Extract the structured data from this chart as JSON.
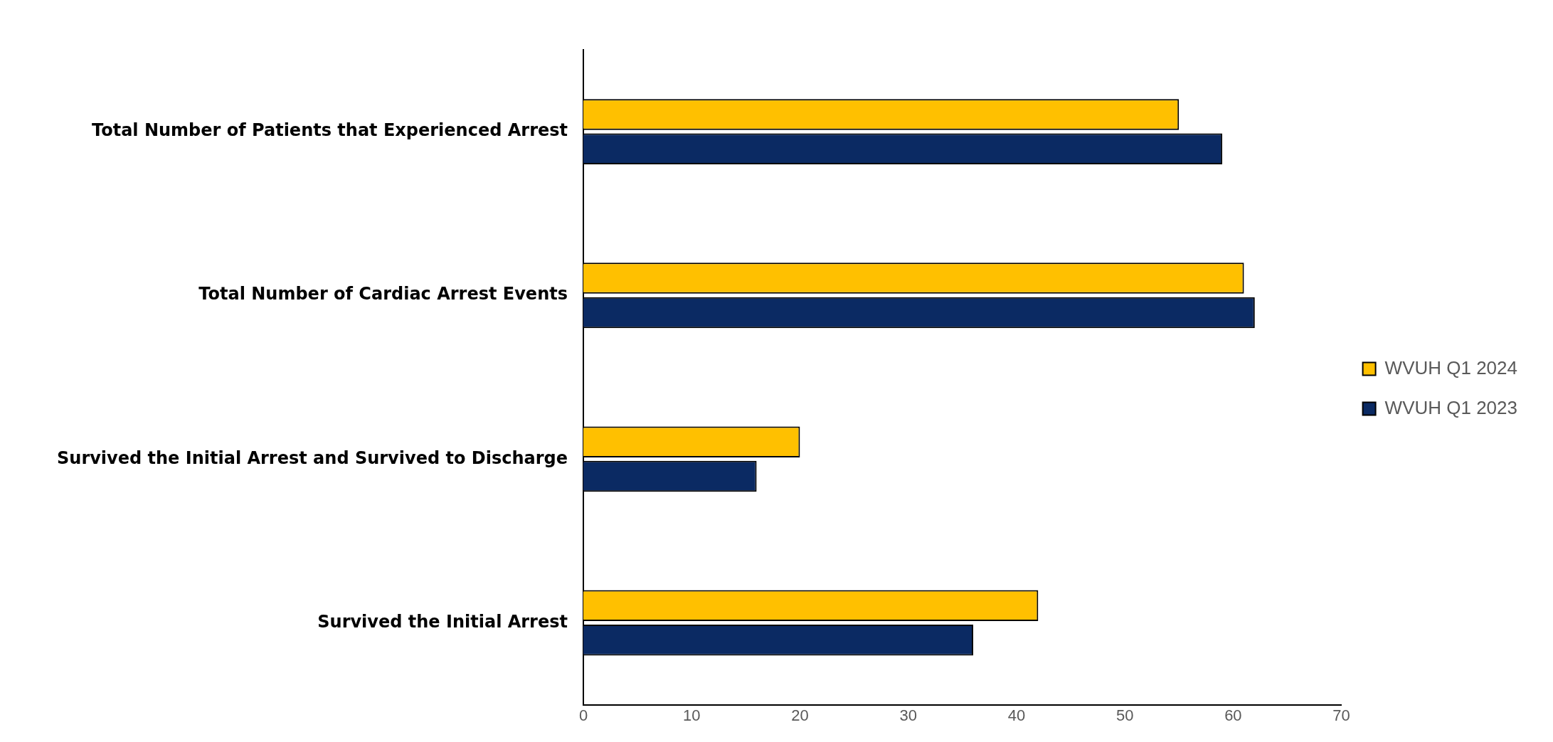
{
  "chart_data": {
    "type": "bar",
    "orientation": "horizontal",
    "categories": [
      "Total Number of Patients that Experienced Arrest",
      "Total Number of Cardiac Arrest Events",
      "Survived the Initial Arrest and Survived to Discharge",
      "Survived the Initial Arrest"
    ],
    "series": [
      {
        "name": "WVUH Q1 2024",
        "color": "#ffc000",
        "values": [
          55,
          61,
          20,
          42
        ]
      },
      {
        "name": "WVUH Q1 2023",
        "color": "#0b2a63",
        "values": [
          59,
          62,
          16,
          36
        ]
      }
    ],
    "xlim": [
      0,
      70
    ],
    "xticks": [
      0,
      10,
      20,
      30,
      40,
      50,
      60,
      70
    ],
    "grid": false,
    "legend": "right"
  }
}
